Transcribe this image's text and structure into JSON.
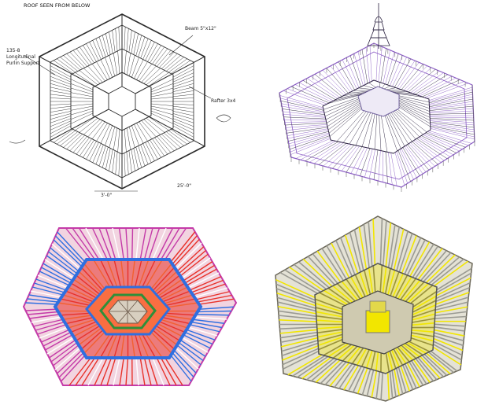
{
  "panels": {
    "sketch": {
      "title": "ROOF SEEN FROM BELOW",
      "notes_left": [
        "135-8",
        "Longitudinal",
        "Purlin Support"
      ],
      "notes_right": [
        "Beam 5\"x12\"",
        "Rafter 3x4"
      ],
      "notes_bottom": [
        "3'-0\"",
        "25'-0\""
      ]
    },
    "wireframe": {
      "view": "perspective-wireframe"
    },
    "color_model": {
      "view": "color-coded-members"
    },
    "shaded_model": {
      "view": "shaded-members"
    }
  },
  "colors": {
    "sketch_ink": "#2a2a2a",
    "wire_purple": "#8a5cc4",
    "wire_dark": "#2b2240",
    "color_red": "#e8322a",
    "color_blue": "#2f6fe0",
    "color_green": "#2f8f3a",
    "color_magenta": "#c43aa8",
    "shade_yellow": "#f2e600",
    "shade_grey": "#9a9a92"
  }
}
